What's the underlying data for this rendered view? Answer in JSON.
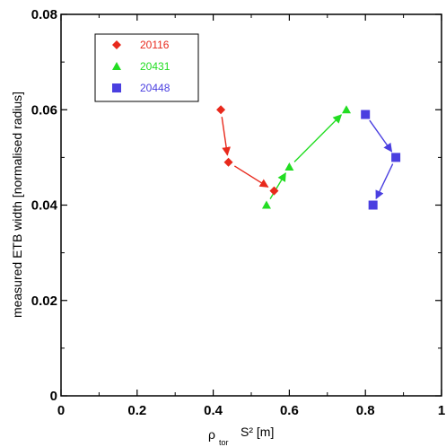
{
  "chart_data": {
    "type": "scatter",
    "title": "",
    "xlabel": {
      "main": "ρ",
      "sub": "tor",
      "tail": "S² [m]"
    },
    "ylabel": "measured ETB width [normalised radius]",
    "xlim": [
      0,
      1
    ],
    "ylim": [
      0,
      0.08
    ],
    "x_ticks": [
      "0",
      "0.2",
      "0.4",
      "0.6",
      "0.8",
      "1"
    ],
    "y_ticks": [
      "0",
      "0.02",
      "0.04",
      "0.06",
      "0.08"
    ],
    "grid": false,
    "legend_position": "top-left",
    "series": [
      {
        "name": "20116",
        "marker": "diamond",
        "color": "#e8291c",
        "x": [
          0.42,
          0.44,
          0.56
        ],
        "y": [
          0.06,
          0.049,
          0.043
        ]
      },
      {
        "name": "20431",
        "marker": "triangle",
        "color": "#22dd22",
        "x": [
          0.54,
          0.6,
          0.75
        ],
        "y": [
          0.04,
          0.048,
          0.06
        ]
      },
      {
        "name": "20448",
        "marker": "square",
        "color": "#4a3fe0",
        "x": [
          0.8,
          0.88,
          0.82
        ],
        "y": [
          0.059,
          0.05,
          0.04
        ]
      }
    ]
  }
}
